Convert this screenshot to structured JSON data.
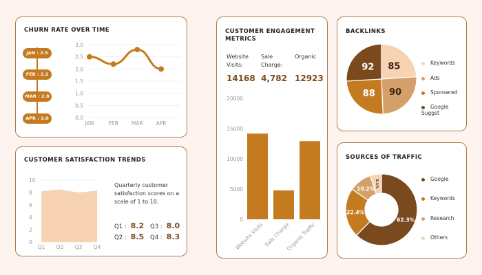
{
  "churn": {
    "title": "CHURN RATE OVER TIME",
    "pills": [
      "JAN : 2.5",
      "FEB : 2.2",
      "MAR : 2.8",
      "APR : 2.0"
    ],
    "chart_data": {
      "type": "line",
      "categories": [
        "JAN",
        "FEB",
        "MAR",
        "APR"
      ],
      "values": [
        2.5,
        2.2,
        2.8,
        2.0
      ],
      "yticks": [
        "0.0",
        "0.5",
        "1.0",
        "1.5",
        "2.0",
        "2.5",
        "3.0"
      ],
      "ylim": [
        0,
        3
      ],
      "color": "#c47a1e"
    }
  },
  "satisfaction": {
    "title": "CUSTOMER SATISFACTION TRENDS",
    "description": "Quarterly customer satisfaction scores on a scale of 1 to 10.",
    "scores": [
      {
        "label": "Q1 :",
        "value": "8.2"
      },
      {
        "label": "Q3 :",
        "value": "8.0"
      },
      {
        "label": "Q2 :",
        "value": "8.5"
      },
      {
        "label": "Q4 :",
        "value": "8.3"
      }
    ],
    "chart_data": {
      "type": "area",
      "categories": [
        "Q1",
        "Q2",
        "Q3",
        "Q4"
      ],
      "values": [
        8.2,
        8.5,
        8.0,
        8.3
      ],
      "yticks": [
        "0",
        "2",
        "4",
        "6",
        "8",
        "10"
      ],
      "ylim": [
        0,
        10
      ],
      "color": "#f7d3b3"
    }
  },
  "engagement": {
    "title_line1": "CUSTOMER ENGAGEMENT",
    "title_line2": "METRICS",
    "metrics": [
      {
        "label_line1": "Website",
        "label_line2": "Visits:",
        "value": "14168"
      },
      {
        "label_line1": "Sale",
        "label_line2": "Charge:",
        "value": "4,782"
      },
      {
        "label_line1": "Organic",
        "label_line2": "",
        "value": "12923"
      }
    ],
    "chart_data": {
      "type": "bar",
      "categories": [
        "Website Visits",
        "Sale Charge",
        "Organic Traffic"
      ],
      "values": [
        14168,
        4782,
        12923
      ],
      "yticks": [
        "0",
        "5000",
        "10000",
        "15000",
        "20000"
      ],
      "ylim": [
        0,
        20000
      ],
      "color": "#c47a1e"
    }
  },
  "backlinks": {
    "title": "BACKLINKS",
    "chart_data": {
      "type": "pie",
      "labels": [
        "Keywords",
        "Ads",
        "Sponsered",
        "Google Suggst"
      ],
      "values": [
        85,
        90,
        88,
        92
      ],
      "value_labels": [
        "85",
        "90",
        "88",
        "92"
      ],
      "colors": [
        "#f7d3b3",
        "#d4a06a",
        "#c47a1e",
        "#7a4a1e"
      ]
    }
  },
  "traffic": {
    "title": "SOURCES OF TRAFFIC",
    "chart_data": {
      "type": "pie",
      "labels": [
        "Google",
        "Keywords",
        "Research",
        "Others"
      ],
      "values": [
        62.3,
        22.4,
        10.2,
        5.1
      ],
      "value_labels": [
        "62.3%",
        "22.4%",
        "10.2%",
        "5.1%"
      ],
      "colors": [
        "#7a4a1e",
        "#c47a1e",
        "#d4a06a",
        "#f7d3b3"
      ]
    }
  }
}
